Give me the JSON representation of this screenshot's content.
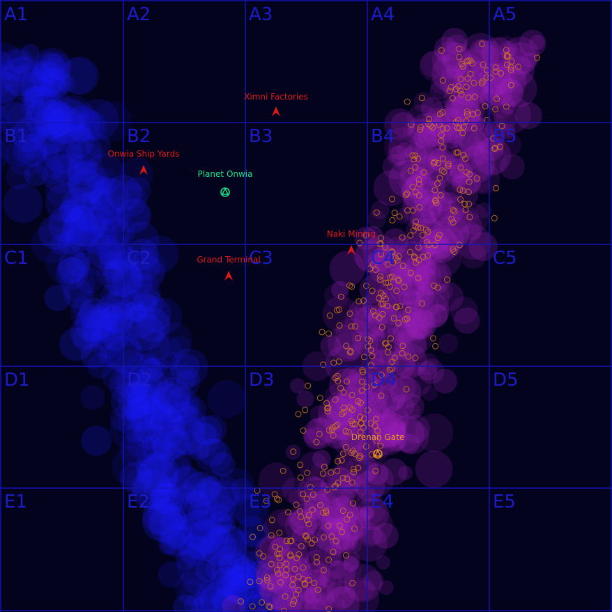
{
  "grid": {
    "rows": [
      "A",
      "B",
      "C",
      "D",
      "E"
    ],
    "cols": [
      "1",
      "2",
      "3",
      "4",
      "5"
    ],
    "cells": [
      "A1",
      "A2",
      "A3",
      "A4",
      "A5",
      "B1",
      "B2",
      "B3",
      "B4",
      "B5",
      "C1",
      "C2",
      "C3",
      "C4",
      "C5",
      "D1",
      "D2",
      "D3",
      "D4",
      "D5",
      "E1",
      "E2",
      "E3",
      "E4",
      "E5"
    ]
  },
  "colors": {
    "background": "#03031e",
    "grid_line": "#1414b4",
    "grid_label": "#1c1cc8",
    "blue_nebula": "#1a1aff",
    "purple_nebula": "#a020c0",
    "asteroid": "#d07818",
    "station": "#e01818",
    "planet": "#19e58c",
    "gate": "#f0961e"
  },
  "locations": [
    {
      "name": "Ximni Factories",
      "type": "station-icon",
      "color": "#e01818"
    },
    {
      "name": "Onwia Ship Yards",
      "type": "station-icon",
      "color": "#e01818"
    },
    {
      "name": "Planet Onwia",
      "type": "planet-icon",
      "color": "#19e58c"
    },
    {
      "name": "Naki Mining",
      "type": "station-icon",
      "color": "#e01818"
    },
    {
      "name": "Grand Terminal",
      "type": "station-icon",
      "color": "#e01818"
    },
    {
      "name": "Drenan Gate",
      "type": "gate-icon",
      "color": "#f0961e"
    }
  ]
}
